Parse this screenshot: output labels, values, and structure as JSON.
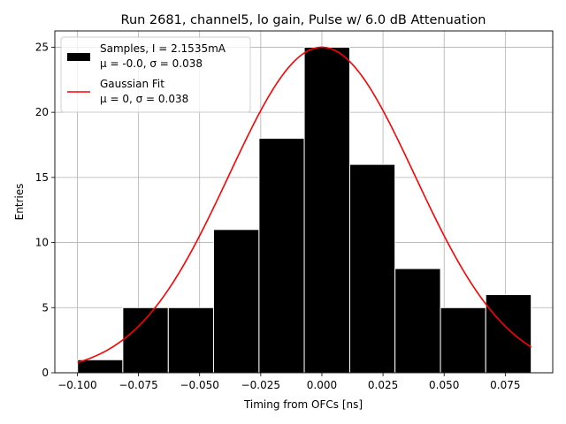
{
  "chart_data": {
    "type": "bar",
    "title": "Run 2681, channel5, lo gain, Pulse w/ 6.0 dB Attenuation",
    "xlabel": "Timing from OFCs [ns]",
    "ylabel": "Entries",
    "xlim": [
      -0.1092,
      0.0944
    ],
    "ylim": [
      0,
      26.25
    ],
    "xticks": [
      -0.1,
      -0.075,
      -0.05,
      -0.025,
      0.0,
      0.025,
      0.05,
      0.075
    ],
    "xtick_labels": [
      "−0.100",
      "−0.075",
      "−0.050",
      "−0.025",
      "0.000",
      "0.025",
      "0.050",
      "0.075"
    ],
    "yticks": [
      0,
      5,
      10,
      15,
      20,
      25
    ],
    "ytick_labels": [
      "0",
      "5",
      "10",
      "15",
      "20",
      "25"
    ],
    "grid": true,
    "legend_position": "top-left",
    "histogram": {
      "bin_edges": [
        -0.0999,
        -0.0814,
        -0.0628,
        -0.0443,
        -0.0257,
        -0.0072,
        0.0114,
        0.0299,
        0.0485,
        0.067,
        0.0856
      ],
      "counts": [
        1,
        5,
        5,
        11,
        18,
        25,
        16,
        8,
        5,
        6
      ],
      "color": "#000000",
      "edge_color": "#ffffff"
    },
    "fit_curve": {
      "function": "gaussian",
      "amplitude": 25,
      "mu": 0,
      "sigma": 0.038,
      "x_range": [
        -0.0999,
        0.0856
      ],
      "color": "#ff0000"
    },
    "legend": [
      {
        "line1": "Samples, I = 2.1535mA",
        "line2": "μ = -0.0, σ = 0.038",
        "marker": "box",
        "color": "#000000"
      },
      {
        "line1": "Gaussian Fit",
        "line2": "μ = 0, σ = 0.038",
        "marker": "line",
        "color": "#ff0000"
      }
    ]
  }
}
